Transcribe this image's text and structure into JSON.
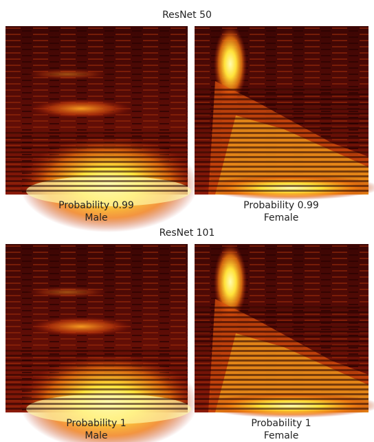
{
  "sections": [
    {
      "title": "ResNet 50",
      "panels": [
        {
          "caption": "Probability 0.99",
          "label": "Male"
        },
        {
          "caption": "Probability 0.99",
          "label": "Female"
        }
      ]
    },
    {
      "title": "ResNet 101",
      "panels": [
        {
          "caption": "Probability 1",
          "label": "Male"
        },
        {
          "caption": "Probability 1",
          "label": "Female"
        }
      ]
    }
  ]
}
